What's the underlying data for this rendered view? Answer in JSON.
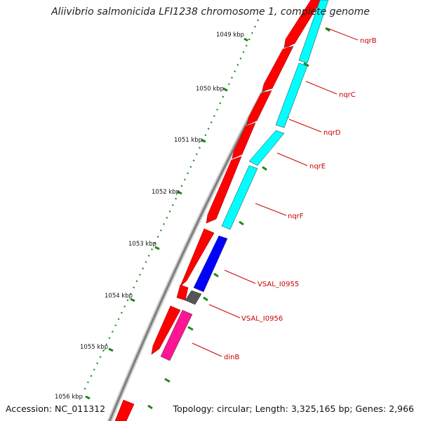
{
  "header": {
    "title": "Aliivibrio salmonicida LFI1238 chromosome 1, complete genome"
  },
  "footer": {
    "accession": "Accession: NC_011312",
    "summary": "Topology: circular; Length: 3,325,165 bp; Genes: 2,966"
  },
  "ruler": {
    "labels": [
      "1049 kbp",
      "1050 kbp",
      "1051 kbp",
      "1052 kbp",
      "1053 kbp",
      "1054 kbp",
      "1055 kbp",
      "1056 kbp"
    ],
    "tick_color": "#1a8a1a"
  },
  "genes": [
    {
      "name": "nqrB",
      "color": "#ff0000"
    },
    {
      "name": "nqrC",
      "color": "#00ffff"
    },
    {
      "name": "nqrD",
      "color": "#00ffff"
    },
    {
      "name": "nqrE",
      "color": "#00ffff"
    },
    {
      "name": "nqrF",
      "color": "#00ffff"
    },
    {
      "name": "VSAL_I0955",
      "color": "#0000ff"
    },
    {
      "name": "VSAL_I0956",
      "color": "#555555"
    },
    {
      "name": "dinB",
      "color": "#ff1493"
    }
  ],
  "colors": {
    "backbone": "#8a8a8a",
    "forward_strand": "#ff0000",
    "label": "#cc0000",
    "leader": "#cc0000"
  }
}
